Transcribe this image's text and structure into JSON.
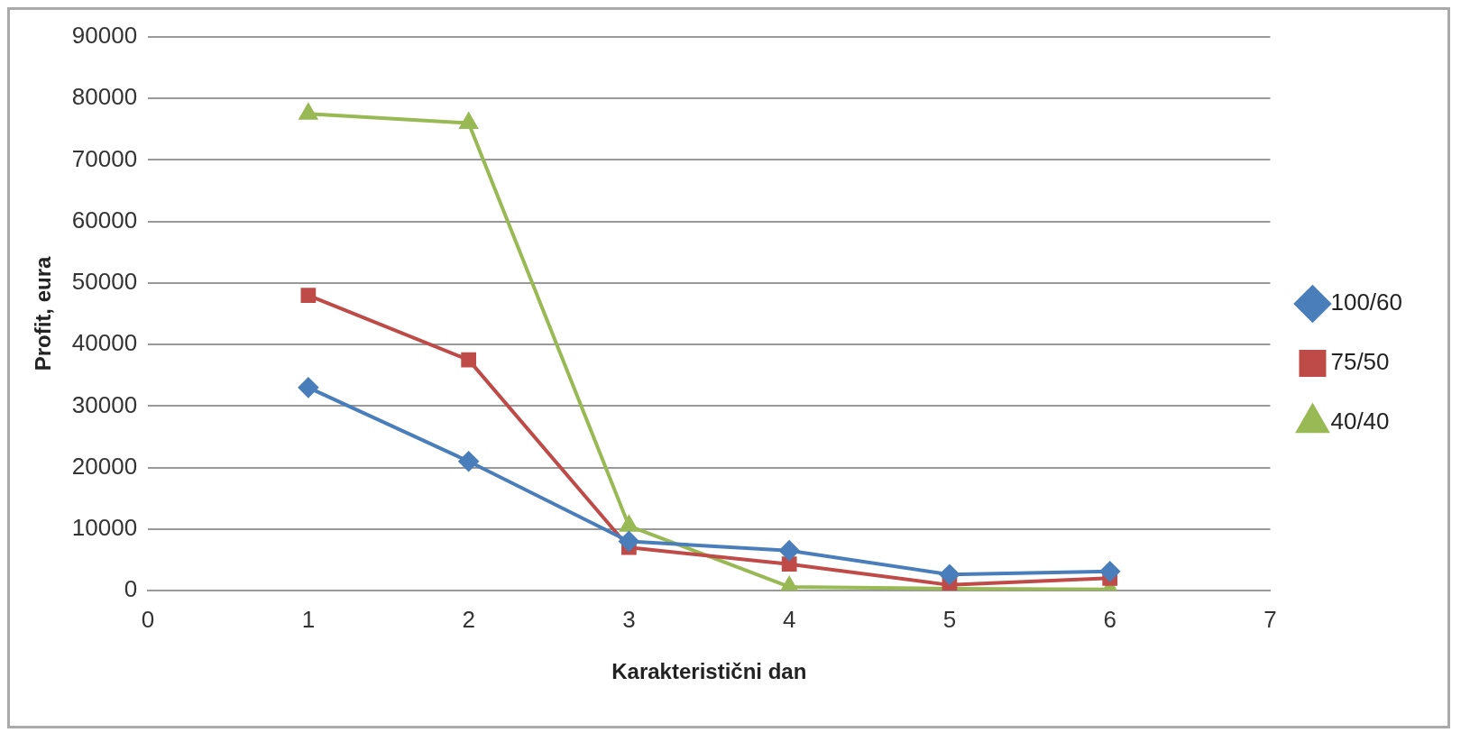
{
  "chart_data": {
    "type": "line",
    "xlabel": "Karakteristični dan",
    "ylabel": "Profit, eura",
    "x": [
      1,
      2,
      3,
      4,
      5,
      6
    ],
    "series": [
      {
        "name": "100/60",
        "color": "#4a7ebb",
        "marker": "diamond",
        "values": [
          33000,
          21000,
          8000,
          6500,
          2600,
          3100
        ]
      },
      {
        "name": "75/50",
        "color": "#be4b48",
        "marker": "square",
        "values": [
          48000,
          37500,
          7000,
          4300,
          900,
          2000
        ]
      },
      {
        "name": "40/40",
        "color": "#98b954",
        "marker": "triangle",
        "values": [
          77500,
          76000,
          10500,
          600,
          300,
          200
        ]
      }
    ],
    "xlim": [
      0,
      7
    ],
    "xticks": [
      0,
      1,
      2,
      3,
      4,
      5,
      6,
      7
    ],
    "ylim": [
      0,
      90000
    ],
    "yticks": [
      0,
      10000,
      20000,
      30000,
      40000,
      50000,
      60000,
      70000,
      80000,
      90000
    ],
    "grid": "y",
    "legend": "right",
    "line_style": "solid"
  }
}
